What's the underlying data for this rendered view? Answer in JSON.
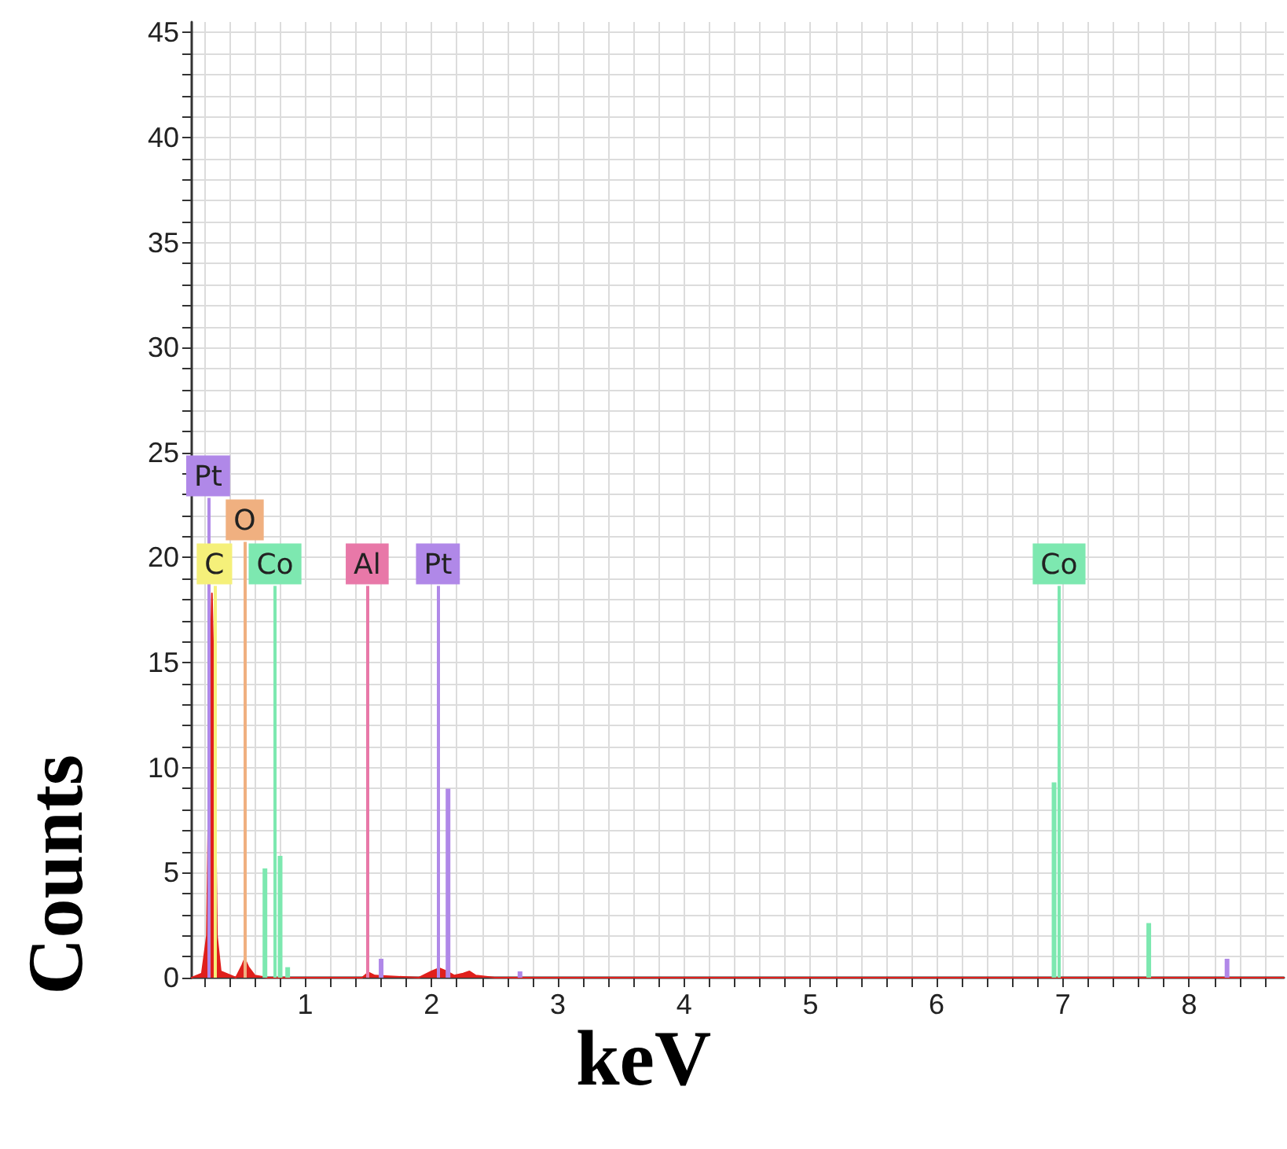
{
  "chart_data": {
    "type": "area",
    "xlabel": "keV",
    "ylabel": "Counts",
    "xlim": [
      0.1,
      8.75
    ],
    "ylim": [
      0,
      45.5
    ],
    "xticks": [
      {
        "value": 0.2,
        "label": null
      },
      {
        "value": 0.4,
        "label": null
      },
      {
        "value": 0.6,
        "label": null
      },
      {
        "value": 0.8,
        "label": null
      },
      1,
      {
        "value": 1.2,
        "label": null
      },
      {
        "value": 1.4,
        "label": null
      },
      {
        "value": 1.6,
        "label": null
      },
      {
        "value": 1.8,
        "label": null
      },
      2,
      {
        "value": 2.2,
        "label": null
      },
      {
        "value": 2.4,
        "label": null
      },
      {
        "value": 2.6,
        "label": null
      },
      {
        "value": 2.8,
        "label": null
      },
      3,
      {
        "value": 3.2,
        "label": null
      },
      {
        "value": 3.4,
        "label": null
      },
      {
        "value": 3.6,
        "label": null
      },
      {
        "value": 3.8,
        "label": null
      },
      4,
      {
        "value": 4.2,
        "label": null
      },
      {
        "value": 4.4,
        "label": null
      },
      {
        "value": 4.6,
        "label": null
      },
      {
        "value": 4.8,
        "label": null
      },
      5,
      {
        "value": 5.2,
        "label": null
      },
      {
        "value": 5.4,
        "label": null
      },
      {
        "value": 5.6,
        "label": null
      },
      {
        "value": 5.8,
        "label": null
      },
      6,
      {
        "value": 6.2,
        "label": null
      },
      {
        "value": 6.4,
        "label": null
      },
      {
        "value": 6.6,
        "label": null
      },
      {
        "value": 6.8,
        "label": null
      },
      7,
      {
        "value": 7.2,
        "label": null
      },
      {
        "value": 7.4,
        "label": null
      },
      {
        "value": 7.6,
        "label": null
      },
      {
        "value": 7.8,
        "label": null
      },
      8,
      {
        "value": 8.2,
        "label": null
      },
      {
        "value": 8.4,
        "label": null
      },
      {
        "value": 8.6,
        "label": null
      }
    ],
    "yticks": [
      0,
      {
        "value": 1,
        "label": null
      },
      {
        "value": 2,
        "label": null
      },
      {
        "value": 3,
        "label": null
      },
      {
        "value": 4,
        "label": null
      },
      5,
      {
        "value": 6,
        "label": null
      },
      {
        "value": 7,
        "label": null
      },
      {
        "value": 8,
        "label": null
      },
      {
        "value": 9,
        "label": null
      },
      10,
      {
        "value": 11,
        "label": null
      },
      {
        "value": 12,
        "label": null
      },
      {
        "value": 13,
        "label": null
      },
      {
        "value": 14,
        "label": null
      },
      15,
      {
        "value": 16,
        "label": null
      },
      {
        "value": 17,
        "label": null
      },
      {
        "value": 18,
        "label": null
      },
      {
        "value": 19,
        "label": null
      },
      20,
      {
        "value": 21,
        "label": null
      },
      {
        "value": 22,
        "label": null
      },
      {
        "value": 23,
        "label": null
      },
      {
        "value": 24,
        "label": null
      },
      25,
      {
        "value": 26,
        "label": null
      },
      {
        "value": 27,
        "label": null
      },
      {
        "value": 28,
        "label": null
      },
      {
        "value": 29,
        "label": null
      },
      30,
      {
        "value": 31,
        "label": null
      },
      {
        "value": 32,
        "label": null
      },
      {
        "value": 33,
        "label": null
      },
      {
        "value": 34,
        "label": null
      },
      35,
      {
        "value": 36,
        "label": null
      },
      {
        "value": 37,
        "label": null
      },
      {
        "value": 38,
        "label": null
      },
      {
        "value": 39,
        "label": null
      },
      40,
      {
        "value": 41,
        "label": null
      },
      {
        "value": 42,
        "label": null
      },
      {
        "value": 43,
        "label": null
      },
      {
        "value": 44,
        "label": null
      },
      45
    ],
    "grid": true,
    "marker": "none",
    "series": [
      {
        "color": "#e0201c",
        "x": [
          0.1,
          0.18,
          0.22,
          0.245,
          0.26,
          0.275,
          0.3,
          0.33,
          0.45,
          0.5,
          0.52,
          0.55,
          0.6,
          0.7,
          1.45,
          1.5,
          1.55,
          1.9,
          2.0,
          2.06,
          2.12,
          2.18,
          2.25,
          2.3,
          2.35,
          2.5,
          8.75
        ],
        "values": [
          0,
          0.2,
          2,
          14,
          18.3,
          14,
          2,
          0.3,
          0,
          0.6,
          0.9,
          0.5,
          0.1,
          0,
          0,
          0.25,
          0.1,
          0,
          0.3,
          0.45,
          0.3,
          0.1,
          0.2,
          0.3,
          0.1,
          0,
          0
        ]
      },
      {
        "type": "bar",
        "color": "#7de8b0",
        "x": [
          0.68,
          0.8,
          0.86,
          6.93,
          7.68
        ],
        "values": [
          5.2,
          5.8,
          0.5,
          9.3,
          2.6
        ]
      },
      {
        "type": "bar",
        "color": "#b088e8",
        "x": [
          1.6,
          2.13,
          2.7,
          8.3
        ],
        "values": [
          0.9,
          9,
          0.3,
          0.9
        ]
      }
    ],
    "ref_lines": [
      {
        "axis": "x",
        "value": 0.23,
        "label": "Pt",
        "color": "#b088e8"
      },
      {
        "axis": "x",
        "value": 0.28,
        "label": "C",
        "color": "#f5f07a"
      },
      {
        "axis": "x",
        "value": 0.76,
        "label": "Co",
        "color": "#7de8b0"
      },
      {
        "axis": "x",
        "value": 1.49,
        "label": "Al",
        "color": "#e878a8"
      },
      {
        "axis": "x",
        "value": 2.05,
        "label": "Pt",
        "color": "#b088e8"
      },
      {
        "axis": "x",
        "value": 6.97,
        "label": "Co",
        "color": "#7de8b0"
      },
      {
        "axis": "x",
        "value": 0.52,
        "label": "O",
        "color": "#f0b080"
      }
    ]
  }
}
